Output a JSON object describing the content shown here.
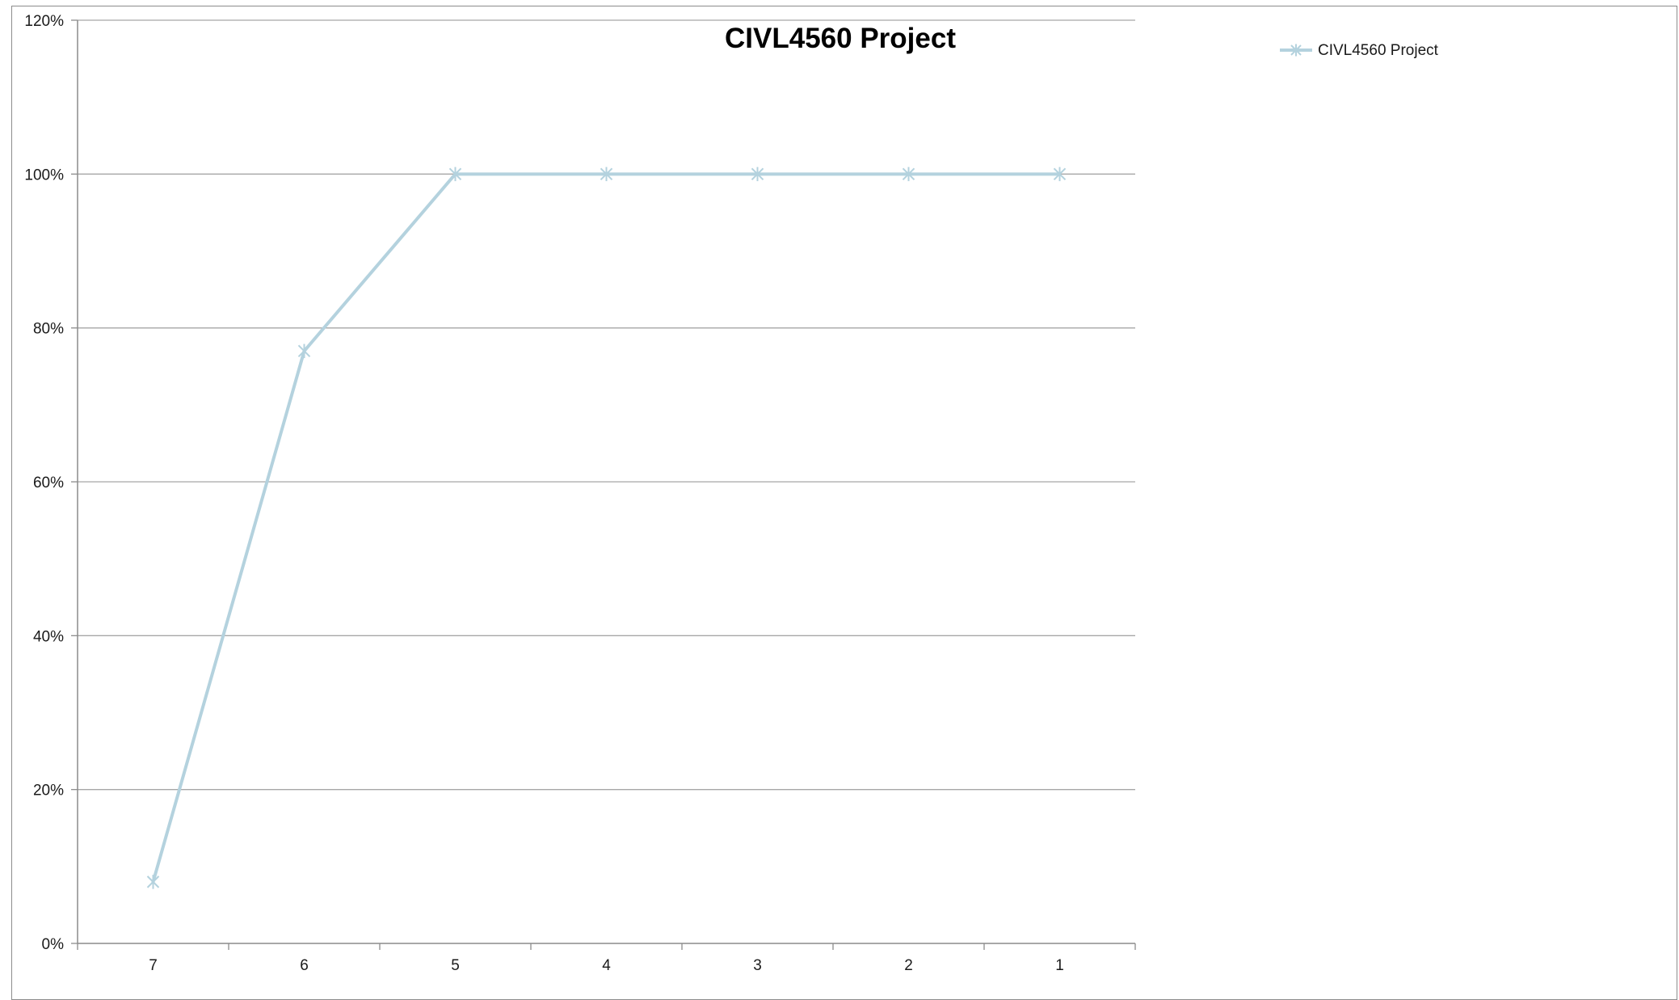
{
  "chart_data": {
    "type": "line",
    "title": "CIVL4560 Project",
    "xlabel": "",
    "ylabel": "",
    "categories": [
      "7",
      "6",
      "5",
      "4",
      "3",
      "2",
      "1"
    ],
    "series": [
      {
        "name": "CIVL4560 Project",
        "values": [
          0.08,
          0.77,
          1.0,
          1.0,
          1.0,
          1.0,
          1.0
        ],
        "color": "#b4d2de",
        "marker": "asterisk"
      }
    ],
    "ylim": [
      0,
      1.2
    ],
    "yticks": [
      0,
      0.2,
      0.4,
      0.6,
      0.8,
      1.0,
      1.2
    ],
    "ytick_labels": [
      "0%",
      "20%",
      "40%",
      "60%",
      "80%",
      "100%",
      "120%"
    ],
    "grid": "horizontal",
    "legend": "top-right",
    "gridline_color": "#a6a6a6",
    "axis_color": "#8c8c8c"
  }
}
